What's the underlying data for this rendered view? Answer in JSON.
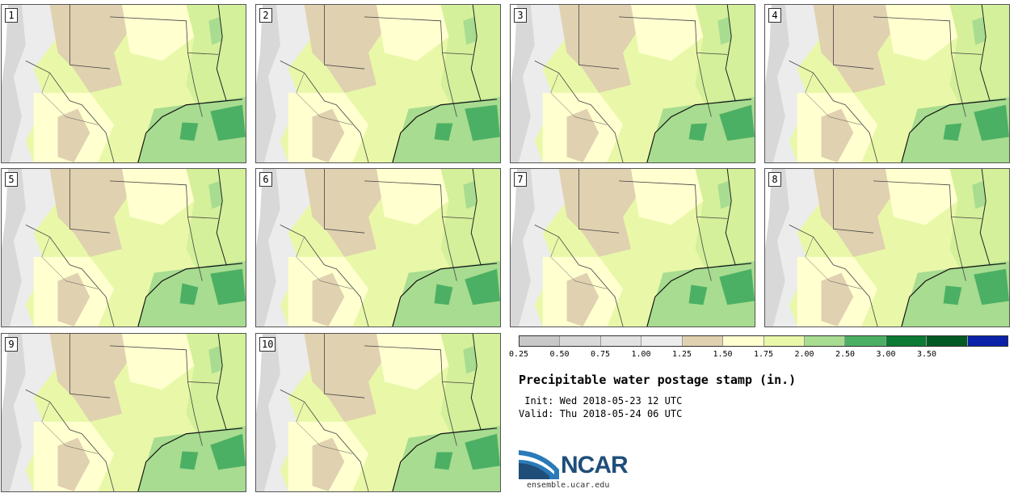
{
  "panels": [
    {
      "label": "1"
    },
    {
      "label": "2"
    },
    {
      "label": "3"
    },
    {
      "label": "4"
    },
    {
      "label": "5"
    },
    {
      "label": "6"
    },
    {
      "label": "7"
    },
    {
      "label": "8"
    },
    {
      "label": "9"
    },
    {
      "label": "10"
    }
  ],
  "legend": {
    "colors": [
      "#c8c8c8",
      "#d8d8d8",
      "#e2e2e2",
      "#ececec",
      "#e0d1b0",
      "#ffffd0",
      "#e8f8a8",
      "#a8dc90",
      "#4cb064",
      "#0c7a34",
      "#045a24",
      "#0b22a8"
    ],
    "ticks": [
      "0.25",
      "0.50",
      "0.75",
      "1.00",
      "1.25",
      "1.50",
      "1.75",
      "2.00",
      "2.50",
      "3.00",
      "3.50"
    ]
  },
  "title": "Precipitable water postage stamp (in.)",
  "init": " Init: Wed 2018-05-23 12 UTC",
  "valid": "Valid: Thu 2018-05-24 06 UTC",
  "logo": {
    "text": "NCAR",
    "url": "ensemble.ucar.edu"
  }
}
